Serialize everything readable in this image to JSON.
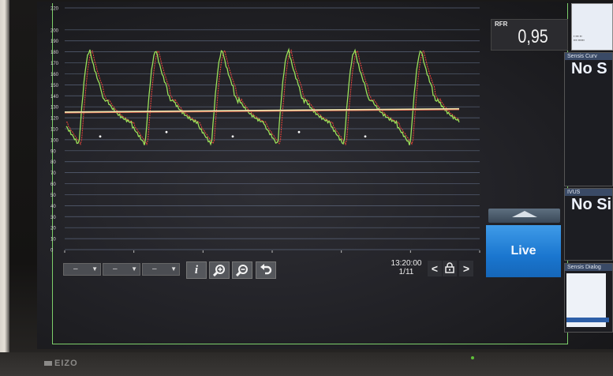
{
  "monitor": {
    "brand": "EIZO"
  },
  "chart_data": {
    "type": "line",
    "y_ticks": [
      "220",
      "200",
      "190",
      "180",
      "170",
      "160",
      "150",
      "140",
      "130",
      "120",
      "110",
      "100",
      "90",
      "80",
      "70",
      "60",
      "50",
      "40",
      "30",
      "20",
      "10",
      "0"
    ],
    "ylim": [
      0,
      220
    ],
    "grid": true,
    "series": [
      {
        "color": "#9be05a"
      },
      {
        "color": "#e0433a"
      },
      {
        "color": "#efe6b0"
      }
    ]
  },
  "rfr": {
    "label": "RFR",
    "value": "0,95"
  },
  "live": {
    "label": "Live"
  },
  "controls": {
    "dropdowns": [
      {
        "value": "–"
      },
      {
        "value": "–"
      },
      {
        "value": "–"
      }
    ],
    "info_icon": "i",
    "zoom_in_icon": "magnify-plus",
    "zoom_out_icon": "magnify-minus",
    "undo_icon": "undo-arrow",
    "time": "13:20:00",
    "page": "1/11",
    "prev": "<",
    "next": ">"
  },
  "side": {
    "curves": {
      "header": "Sensis Curv",
      "status": "No S"
    },
    "ivus": {
      "header": "IVUS",
      "status": "No Sig"
    },
    "dialog": {
      "header": "Sensis Dialog"
    }
  }
}
